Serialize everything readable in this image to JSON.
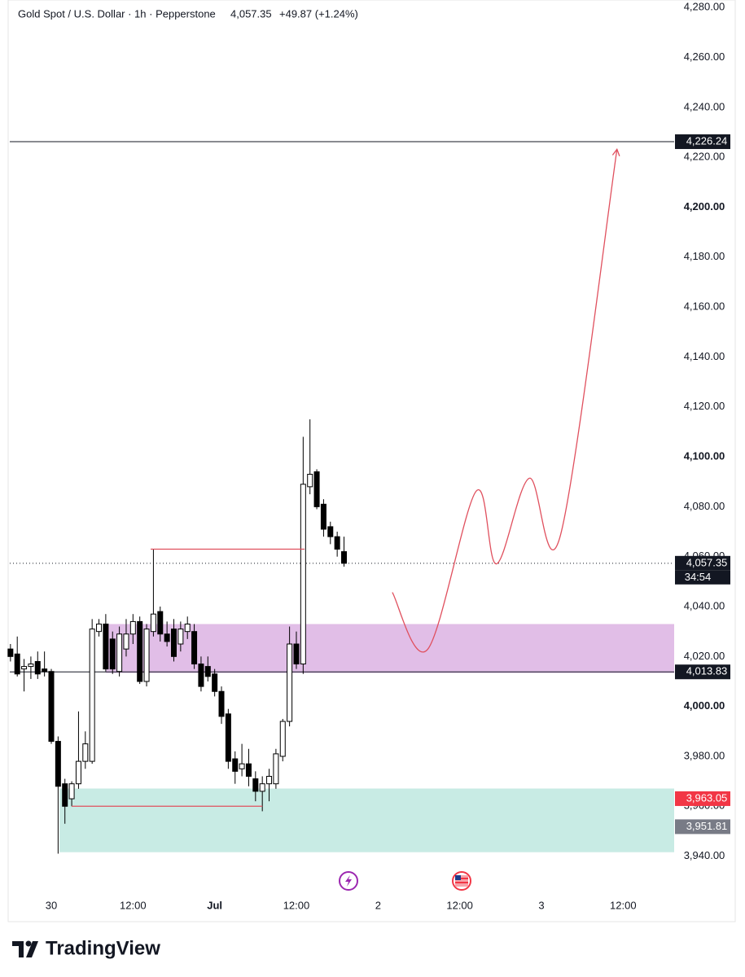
{
  "chart_data": {
    "type": "candlestick",
    "title": "Gold Spot / U.S. Dollar · 1h · Pepperstone",
    "last": {
      "value": 4057.35,
      "label": "4,057.35"
    },
    "change": "+49.87 (+1.24%)",
    "x": [
      -6,
      -5,
      -4,
      -3,
      -2,
      -1,
      0,
      1,
      2,
      3,
      4,
      5,
      6,
      7,
      8,
      9,
      10,
      11,
      12,
      13,
      14,
      15,
      16,
      17,
      18,
      19,
      20,
      21,
      22,
      23,
      24,
      25,
      26,
      27,
      28,
      29,
      30,
      31,
      32,
      33,
      34,
      35,
      36,
      37,
      38,
      39,
      40,
      41,
      42,
      43
    ],
    "open": [
      4023,
      4021,
      4015,
      4016,
      4018,
      4015,
      4014,
      3986,
      3969,
      3963,
      3969,
      3978,
      3978,
      4030,
      4033,
      4027,
      4014,
      4023,
      4029,
      4034,
      4010,
      4030,
      4038,
      4029,
      4031,
      4025,
      4030,
      4030,
      4017,
      4016,
      4013,
      4006,
      3997,
      3979,
      3975,
      3977,
      3971,
      3966,
      3969,
      3969,
      3980,
      3994,
      4025,
      4017,
      4088,
      4094,
      4081,
      4072,
      4068,
      4062
    ],
    "high": [
      4025,
      4028,
      4019,
      4020,
      4022,
      4022,
      4015,
      3988,
      3971,
      3970,
      3998,
      3990,
      4035,
      4035,
      4037,
      4030,
      4032,
      4035,
      4037,
      4036,
      4033,
      4063,
      4040,
      4034,
      4035,
      4034,
      4036,
      4033,
      4020,
      4020,
      4015,
      4008,
      3999,
      3982,
      3985,
      3983,
      3974,
      3972,
      3975,
      3983,
      3995,
      4032,
      4030,
      4108,
      4115,
      4095,
      4083,
      4074,
      4070,
      4068
    ],
    "low": [
      4018,
      4012,
      4006,
      4011,
      4011,
      4012,
      3985,
      3941,
      3953,
      3960,
      3967,
      3975,
      3977,
      4028,
      4014,
      4013,
      4012,
      4020,
      4025,
      4009,
      4008,
      4028,
      4026,
      4024,
      4018,
      4022,
      4027,
      4015,
      4006,
      4010,
      4004,
      3993,
      3975,
      3969,
      3972,
      3968,
      3962,
      3958,
      3962,
      3967,
      3978,
      3992,
      4015,
      4013,
      4085,
      4079,
      4068,
      4065,
      4060,
      4056
    ],
    "close": [
      4020,
      4013,
      4016,
      4017,
      4013,
      4014,
      3986,
      3968,
      3960,
      3969,
      3978,
      3985,
      4031,
      4033,
      4015,
      4015,
      4029,
      4029,
      4034,
      4010,
      4031,
      4037,
      4029,
      4026,
      4020,
      4031,
      4033,
      4017,
      4008,
      4012,
      4006,
      3996,
      3978,
      3974,
      3977,
      3972,
      3966,
      3969,
      3972,
      3981,
      3994,
      4025,
      4017,
      4089,
      4093,
      4080,
      4071,
      4068,
      4063,
      4057.35
    ],
    "up_color": "#ffffff",
    "down_color": "#000000",
    "wick_color": "#000000",
    "xlim": [
      -6.1,
      91.5
    ],
    "xticks": [
      {
        "value": 0,
        "label": "30"
      },
      {
        "value": 12,
        "label": "12:00"
      },
      {
        "value": 24,
        "label": "Jul"
      },
      {
        "value": 36,
        "label": "12:00"
      },
      {
        "value": 48,
        "label": "2"
      },
      {
        "value": 60,
        "label": "12:00"
      },
      {
        "value": 72,
        "label": "3"
      },
      {
        "value": 84,
        "label": "12:00"
      }
    ],
    "ylim": [
      3934,
      4283
    ],
    "yticks": [
      {
        "value": 3940,
        "label": "3,940.00"
      },
      {
        "value": 3960,
        "label": "3,960.00"
      },
      {
        "value": 3980,
        "label": "3,980.00"
      },
      {
        "value": 4000,
        "label": "4,000.00"
      },
      {
        "value": 4020,
        "label": "4,020.00"
      },
      {
        "value": 4040,
        "label": "4,040.00"
      },
      {
        "value": 4060,
        "label": "4,060.00"
      },
      {
        "value": 4080,
        "label": "4,080.00"
      },
      {
        "value": 4100,
        "label": "4,100.00"
      },
      {
        "value": 4120,
        "label": "4,120.00"
      },
      {
        "value": 4140,
        "label": "4,140.00"
      },
      {
        "value": 4160,
        "label": "4,160.00"
      },
      {
        "value": 4180,
        "label": "4,180.00"
      },
      {
        "value": 4200,
        "label": "4,200.00"
      },
      {
        "value": 4220,
        "label": "4,220.00"
      },
      {
        "value": 4240,
        "label": "4,240.00"
      },
      {
        "value": 4260,
        "label": "4,260.00"
      },
      {
        "value": 4280,
        "label": "4,280.00"
      }
    ],
    "zones": [
      {
        "y": [
          4013.4,
          4033
        ],
        "x_start": 8,
        "color": "#e1bee7"
      },
      {
        "y": [
          3941.6,
          3967.1
        ],
        "x_start": 1.2,
        "color": "#c8ebe4"
      }
    ],
    "levels": [
      {
        "value": 4226.24,
        "label": "4,226.24",
        "style": "solid",
        "color": "#131722"
      },
      {
        "value": 4013.83,
        "label": "4,013.83",
        "style": "solid",
        "color": "#131722"
      },
      {
        "value": 4057.35,
        "label": "4,057.35",
        "countdown": "34:54",
        "style": "dotted",
        "color": "#131722"
      }
    ],
    "price_tags": [
      {
        "value": 3963.05,
        "label": "3,963.05",
        "color": "#f23645"
      },
      {
        "value": 3951.81,
        "label": "3,951.81",
        "color": "#787b86"
      }
    ],
    "drawings": [
      {
        "x": [
          14.6,
          37.2
        ],
        "y": [
          4063,
          4063
        ],
        "color": "#e0505e"
      },
      {
        "x": [
          3,
          31
        ],
        "y": [
          3960,
          3960
        ],
        "color": "#e0505e"
      },
      {
        "x": [
          50.1,
          55.3,
          62.4,
          65.4,
          70.2,
          74.8,
          83.1
        ],
        "y": [
          4045.7,
          4022.9,
          4086.2,
          4057.1,
          4091.4,
          4068.6,
          4223.2
        ],
        "color": "#e0505e",
        "smooth": true,
        "arrow": true
      }
    ]
  },
  "footer": {
    "brand": "TradingView"
  }
}
